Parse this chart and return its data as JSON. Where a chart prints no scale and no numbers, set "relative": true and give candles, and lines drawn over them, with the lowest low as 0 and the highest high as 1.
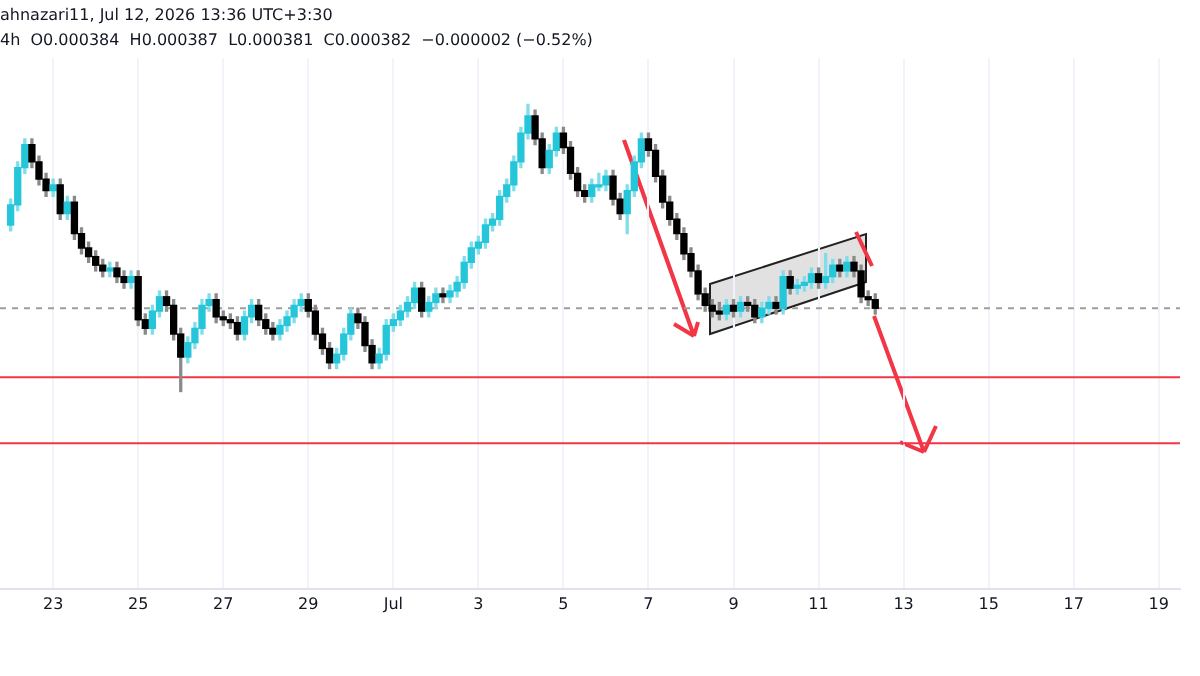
{
  "chart_data": {
    "type": "candlestick",
    "title": "ahnazari11, Jul 12, 2026 13:36 UTC+3:30",
    "subtitle": "4h  O0.000384  H0.000387  L0.000381  C0.000382  −0.000002 (−0.52%)",
    "relative": true,
    "grid": "x",
    "xlim": [
      "2026-06-21T18:00",
      "2026-07-19T12:00"
    ],
    "xticks": [
      {
        "value": "2026-06-23",
        "label": "23"
      },
      {
        "value": "2026-06-25",
        "label": "25"
      },
      {
        "value": "2026-06-27",
        "label": "27"
      },
      {
        "value": "2026-06-29",
        "label": "29"
      },
      {
        "value": "2026-07-01",
        "label": "Jul"
      },
      {
        "value": "2026-07-03",
        "label": "3"
      },
      {
        "value": "2026-07-05",
        "label": "5"
      },
      {
        "value": "2026-07-07",
        "label": "7"
      },
      {
        "value": "2026-07-09",
        "label": "9"
      },
      {
        "value": "2026-07-11",
        "label": "11"
      },
      {
        "value": "2026-07-13",
        "label": "13"
      },
      {
        "value": "2026-07-15",
        "label": "15"
      },
      {
        "value": "2026-07-17",
        "label": "17"
      },
      {
        "value": "2026-07-19",
        "label": "19"
      }
    ],
    "x": [
      "2026-06-22T00:00",
      "2026-06-22T04:00",
      "2026-06-22T08:00",
      "2026-06-22T12:00",
      "2026-06-22T16:00",
      "2026-06-22T20:00",
      "2026-06-23T00:00",
      "2026-06-23T04:00",
      "2026-06-23T08:00",
      "2026-06-23T12:00",
      "2026-06-23T16:00",
      "2026-06-23T20:00",
      "2026-06-24T00:00",
      "2026-06-24T04:00",
      "2026-06-24T08:00",
      "2026-06-24T12:00",
      "2026-06-24T16:00",
      "2026-06-24T20:00",
      "2026-06-25T00:00",
      "2026-06-25T04:00",
      "2026-06-25T08:00",
      "2026-06-25T12:00",
      "2026-06-25T16:00",
      "2026-06-25T20:00",
      "2026-06-26T00:00",
      "2026-06-26T04:00",
      "2026-06-26T08:00",
      "2026-06-26T12:00",
      "2026-06-26T16:00",
      "2026-06-26T20:00",
      "2026-06-27T00:00",
      "2026-06-27T04:00",
      "2026-06-27T08:00",
      "2026-06-27T12:00",
      "2026-06-27T16:00",
      "2026-06-27T20:00",
      "2026-06-28T00:00",
      "2026-06-28T04:00",
      "2026-06-28T08:00",
      "2026-06-28T12:00",
      "2026-06-28T16:00",
      "2026-06-28T20:00",
      "2026-06-29T00:00",
      "2026-06-29T04:00",
      "2026-06-29T08:00",
      "2026-06-29T12:00",
      "2026-06-29T16:00",
      "2026-06-29T20:00",
      "2026-06-30T00:00",
      "2026-06-30T04:00",
      "2026-06-30T08:00",
      "2026-06-30T12:00",
      "2026-06-30T16:00",
      "2026-06-30T20:00",
      "2026-07-01T00:00",
      "2026-07-01T04:00",
      "2026-07-01T08:00",
      "2026-07-01T12:00",
      "2026-07-01T16:00",
      "2026-07-01T20:00",
      "2026-07-02T00:00",
      "2026-07-02T04:00",
      "2026-07-02T08:00",
      "2026-07-02T12:00",
      "2026-07-02T16:00",
      "2026-07-02T20:00",
      "2026-07-03T00:00",
      "2026-07-03T04:00",
      "2026-07-03T08:00",
      "2026-07-03T12:00",
      "2026-07-03T16:00",
      "2026-07-03T20:00",
      "2026-07-04T00:00",
      "2026-07-04T04:00",
      "2026-07-04T08:00",
      "2026-07-04T12:00",
      "2026-07-04T16:00",
      "2026-07-04T20:00",
      "2026-07-05T00:00",
      "2026-07-05T04:00",
      "2026-07-05T08:00",
      "2026-07-05T12:00",
      "2026-07-05T16:00",
      "2026-07-05T20:00",
      "2026-07-06T00:00",
      "2026-07-06T04:00",
      "2026-07-06T08:00",
      "2026-07-06T12:00",
      "2026-07-06T16:00",
      "2026-07-06T20:00",
      "2026-07-07T00:00",
      "2026-07-07T04:00",
      "2026-07-07T08:00",
      "2026-07-07T12:00",
      "2026-07-07T16:00",
      "2026-07-07T20:00",
      "2026-07-08T00:00",
      "2026-07-08T04:00",
      "2026-07-08T08:00",
      "2026-07-08T12:00",
      "2026-07-08T16:00",
      "2026-07-08T20:00",
      "2026-07-09T00:00",
      "2026-07-09T04:00",
      "2026-07-09T08:00",
      "2026-07-09T12:00",
      "2026-07-09T16:00",
      "2026-07-09T20:00",
      "2026-07-10T00:00",
      "2026-07-10T04:00",
      "2026-07-10T08:00",
      "2026-07-10T12:00",
      "2026-07-10T16:00",
      "2026-07-10T20:00",
      "2026-07-11T00:00",
      "2026-07-11T04:00",
      "2026-07-11T08:00",
      "2026-07-11T12:00",
      "2026-07-11T16:00",
      "2026-07-11T20:00",
      "2026-07-12T00:00",
      "2026-07-12T04:00",
      "2026-07-12T08:00"
    ],
    "ohlc": [
      [
        0.58,
        0.67,
        0.56,
        0.65
      ],
      [
        0.65,
        0.8,
        0.63,
        0.78
      ],
      [
        0.78,
        0.88,
        0.76,
        0.86
      ],
      [
        0.86,
        0.88,
        0.78,
        0.8
      ],
      [
        0.8,
        0.82,
        0.72,
        0.74
      ],
      [
        0.74,
        0.76,
        0.68,
        0.7
      ],
      [
        0.7,
        0.74,
        0.68,
        0.72
      ],
      [
        0.72,
        0.74,
        0.6,
        0.62
      ],
      [
        0.62,
        0.68,
        0.6,
        0.66
      ],
      [
        0.66,
        0.68,
        0.53,
        0.55
      ],
      [
        0.55,
        0.57,
        0.48,
        0.5
      ],
      [
        0.5,
        0.52,
        0.45,
        0.47
      ],
      [
        0.47,
        0.49,
        0.42,
        0.44
      ],
      [
        0.44,
        0.46,
        0.4,
        0.42
      ],
      [
        0.42,
        0.45,
        0.4,
        0.43
      ],
      [
        0.43,
        0.45,
        0.38,
        0.4
      ],
      [
        0.4,
        0.42,
        0.36,
        0.38
      ],
      [
        0.38,
        0.42,
        0.36,
        0.4
      ],
      [
        0.4,
        0.42,
        0.23,
        0.25
      ],
      [
        0.25,
        0.27,
        0.2,
        0.22
      ],
      [
        0.22,
        0.3,
        0.2,
        0.28
      ],
      [
        0.28,
        0.35,
        0.26,
        0.33
      ],
      [
        0.33,
        0.35,
        0.28,
        0.3
      ],
      [
        0.3,
        0.32,
        0.18,
        0.2
      ],
      [
        0.2,
        0.22,
        0,
        0.12
      ],
      [
        0.12,
        0.19,
        0.1,
        0.17
      ],
      [
        0.17,
        0.24,
        0.15,
        0.22
      ],
      [
        0.22,
        0.32,
        0.2,
        0.3
      ],
      [
        0.3,
        0.34,
        0.28,
        0.32
      ],
      [
        0.32,
        0.34,
        0.24,
        0.26
      ],
      [
        0.26,
        0.28,
        0.23,
        0.25
      ],
      [
        0.25,
        0.27,
        0.22,
        0.24
      ],
      [
        0.24,
        0.26,
        0.18,
        0.2
      ],
      [
        0.2,
        0.28,
        0.18,
        0.26
      ],
      [
        0.26,
        0.32,
        0.24,
        0.3
      ],
      [
        0.3,
        0.32,
        0.23,
        0.25
      ],
      [
        0.25,
        0.27,
        0.2,
        0.22
      ],
      [
        0.22,
        0.24,
        0.18,
        0.2
      ],
      [
        0.2,
        0.25,
        0.18,
        0.23
      ],
      [
        0.23,
        0.28,
        0.21,
        0.26
      ],
      [
        0.26,
        0.32,
        0.24,
        0.3
      ],
      [
        0.3,
        0.34,
        0.28,
        0.32
      ],
      [
        0.32,
        0.34,
        0.26,
        0.28
      ],
      [
        0.28,
        0.3,
        0.18,
        0.2
      ],
      [
        0.2,
        0.22,
        0.13,
        0.15
      ],
      [
        0.15,
        0.17,
        0.08,
        0.1
      ],
      [
        0.1,
        0.15,
        0.08,
        0.13
      ],
      [
        0.13,
        0.22,
        0.11,
        0.2
      ],
      [
        0.2,
        0.29,
        0.18,
        0.27
      ],
      [
        0.27,
        0.29,
        0.22,
        0.24
      ],
      [
        0.24,
        0.26,
        0.14,
        0.16
      ],
      [
        0.16,
        0.18,
        0.08,
        0.1
      ],
      [
        0.1,
        0.15,
        0.08,
        0.13
      ],
      [
        0.13,
        0.25,
        0.11,
        0.23
      ],
      [
        0.23,
        0.27,
        0.21,
        0.25
      ],
      [
        0.25,
        0.3,
        0.23,
        0.28
      ],
      [
        0.28,
        0.33,
        0.26,
        0.31
      ],
      [
        0.31,
        0.38,
        0.29,
        0.36
      ],
      [
        0.36,
        0.38,
        0.26,
        0.28
      ],
      [
        0.28,
        0.33,
        0.26,
        0.31
      ],
      [
        0.31,
        0.36,
        0.29,
        0.34
      ],
      [
        0.34,
        0.36,
        0.31,
        0.33
      ],
      [
        0.33,
        0.37,
        0.31,
        0.35
      ],
      [
        0.35,
        0.4,
        0.33,
        0.38
      ],
      [
        0.38,
        0.47,
        0.36,
        0.45
      ],
      [
        0.45,
        0.52,
        0.43,
        0.5
      ],
      [
        0.5,
        0.54,
        0.48,
        0.52
      ],
      [
        0.52,
        0.6,
        0.5,
        0.58
      ],
      [
        0.58,
        0.62,
        0.56,
        0.6
      ],
      [
        0.6,
        0.7,
        0.58,
        0.68
      ],
      [
        0.68,
        0.74,
        0.66,
        0.72
      ],
      [
        0.72,
        0.82,
        0.7,
        0.8
      ],
      [
        0.8,
        0.92,
        0.78,
        0.9
      ],
      [
        0.9,
        1,
        0.88,
        0.96
      ],
      [
        0.96,
        0.98,
        0.86,
        0.88
      ],
      [
        0.88,
        0.9,
        0.76,
        0.78
      ],
      [
        0.78,
        0.86,
        0.76,
        0.84
      ],
      [
        0.84,
        0.92,
        0.82,
        0.9
      ],
      [
        0.9,
        0.92,
        0.83,
        0.85
      ],
      [
        0.85,
        0.87,
        0.74,
        0.76
      ],
      [
        0.76,
        0.78,
        0.68,
        0.7
      ],
      [
        0.7,
        0.72,
        0.66,
        0.68
      ],
      [
        0.68,
        0.74,
        0.66,
        0.72
      ],
      [
        0.72,
        0.76,
        0.7,
        0.72
      ],
      [
        0.72,
        0.77,
        0.7,
        0.75
      ],
      [
        0.75,
        0.77,
        0.65,
        0.67
      ],
      [
        0.67,
        0.69,
        0.6,
        0.62
      ],
      [
        0.62,
        0.72,
        0.55,
        0.7
      ],
      [
        0.7,
        0.82,
        0.68,
        0.8
      ],
      [
        0.8,
        0.9,
        0.78,
        0.88
      ],
      [
        0.88,
        0.9,
        0.82,
        0.84
      ],
      [
        0.84,
        0.86,
        0.73,
        0.75
      ],
      [
        0.75,
        0.77,
        0.64,
        0.66
      ],
      [
        0.66,
        0.68,
        0.58,
        0.6
      ],
      [
        0.6,
        0.62,
        0.53,
        0.55
      ],
      [
        0.55,
        0.57,
        0.46,
        0.48
      ],
      [
        0.48,
        0.5,
        0.4,
        0.42
      ],
      [
        0.42,
        0.44,
        0.32,
        0.34
      ],
      [
        0.34,
        0.36,
        0.28,
        0.3
      ],
      [
        0.3,
        0.32,
        0.26,
        0.28
      ],
      [
        0.28,
        0.31,
        0.25,
        0.27
      ],
      [
        0.27,
        0.32,
        0.25,
        0.3
      ],
      [
        0.3,
        0.32,
        0.26,
        0.28
      ],
      [
        0.28,
        0.33,
        0.26,
        0.31
      ],
      [
        0.31,
        0.33,
        0.28,
        0.3
      ],
      [
        0.3,
        0.32,
        0.24,
        0.26
      ],
      [
        0.26,
        0.31,
        0.24,
        0.29
      ],
      [
        0.29,
        0.33,
        0.27,
        0.31
      ],
      [
        0.31,
        0.33,
        0.27,
        0.29
      ],
      [
        0.29,
        0.42,
        0.27,
        0.4
      ],
      [
        0.4,
        0.42,
        0.34,
        0.36
      ],
      [
        0.36,
        0.39,
        0.34,
        0.37
      ],
      [
        0.37,
        0.4,
        0.35,
        0.38
      ],
      [
        0.38,
        0.43,
        0.36,
        0.41
      ],
      [
        0.41,
        0.43,
        0.36,
        0.38
      ],
      [
        0.38,
        0.48,
        0.36,
        0.4
      ],
      [
        0.4,
        0.46,
        0.38,
        0.44
      ],
      [
        0.44,
        0.46,
        0.4,
        0.42
      ],
      [
        0.42,
        0.47,
        0.4,
        0.45
      ],
      [
        0.45,
        0.47,
        0.4,
        0.42
      ],
      [
        0.42,
        0.44,
        0.31,
        0.33
      ],
      [
        0.33,
        0.35,
        0.3,
        0.32
      ],
      [
        0.32,
        0.34,
        0.27,
        0.29
      ]
    ],
    "ref_lines": [
      {
        "axis": "y",
        "value": 0.29,
        "color": "#9e9e9e",
        "line_style": "dashed"
      },
      {
        "axis": "y",
        "value": 0.05,
        "color": "#f23645"
      },
      {
        "axis": "y",
        "value": -0.18,
        "color": "#f23645"
      }
    ]
  }
}
